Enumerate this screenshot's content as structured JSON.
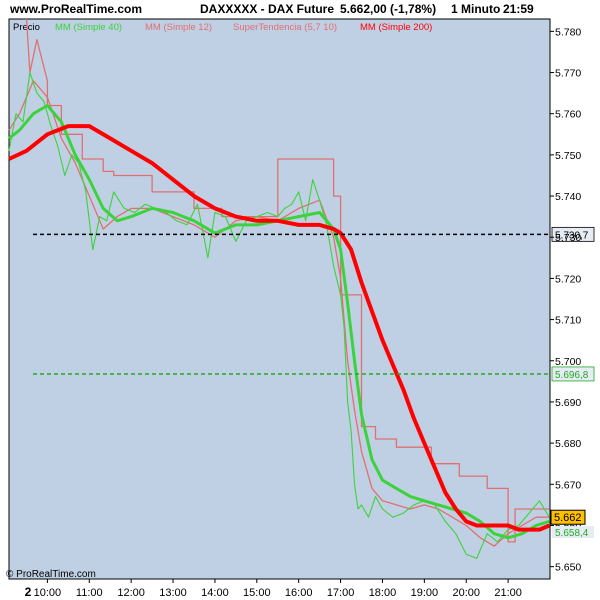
{
  "header": {
    "site": "www.ProRealTime.com",
    "instrument": "DAXXXXX - DAX Future",
    "price_change": "5.662,00 (-1,78%)",
    "timeframe": "1 Minuto",
    "time": "21:59"
  },
  "watermark": "© ProRealTime.com",
  "colors": {
    "plot_bg": "#c0d0e4",
    "price": "#3cd23c",
    "sma40": "#3cd23c",
    "sma12": "#e07070",
    "supertrend": "#e07070",
    "sma200": "#ff0000",
    "hline_black": "#000000",
    "hline_green": "#22aa22"
  },
  "chart_data": {
    "type": "line",
    "legend": [
      "Precio",
      "MM (Simple 40)",
      "MM (Simple 12)",
      "SuperTendencia (5,7 10)",
      "MM (Simple 200)"
    ],
    "day_label": "2",
    "x_ticks": [
      "10:00",
      "11:00",
      "12:00",
      "13:00",
      "14:00",
      "15:00",
      "16:00",
      "17:00",
      "18:00",
      "19:00",
      "20:00",
      "21:00"
    ],
    "x_range": [
      "09:05",
      "22:00"
    ],
    "y_ticks": [
      "5.780",
      "5.770",
      "5.760",
      "5.750",
      "5.740",
      "5.730",
      "5.720",
      "5.710",
      "5.700",
      "5.690",
      "5.680",
      "5.670",
      "5.660",
      "5.650"
    ],
    "ylim": [
      5647,
      5783
    ],
    "reference_lines": [
      {
        "value": 5730.7,
        "label": "5.730,7",
        "style": "dashed",
        "color": "black"
      },
      {
        "value": 5696.8,
        "label": "5.696,8",
        "style": "dashed",
        "color": "green"
      }
    ],
    "last_price": {
      "value": 5662,
      "label": "5.662"
    },
    "side_labels": [
      {
        "value": 5658.4,
        "label": "5.658,4"
      }
    ],
    "series": [
      {
        "name": "Precio",
        "x": [
          "09:05",
          "09:15",
          "09:25",
          "09:35",
          "09:45",
          "09:55",
          "10:05",
          "10:15",
          "10:25",
          "10:35",
          "10:45",
          "10:55",
          "11:05",
          "11:15",
          "11:25",
          "11:35",
          "11:50",
          "12:05",
          "12:20",
          "12:35",
          "12:50",
          "13:05",
          "13:20",
          "13:35",
          "13:50",
          "14:00",
          "14:15",
          "14:30",
          "14:45",
          "15:00",
          "15:15",
          "15:30",
          "15:40",
          "15:50",
          "16:00",
          "16:10",
          "16:20",
          "16:30",
          "16:40",
          "16:50",
          "17:00",
          "17:05",
          "17:10",
          "17:15",
          "17:20",
          "17:25",
          "17:30",
          "17:40",
          "17:50",
          "18:00",
          "18:15",
          "18:30",
          "18:45",
          "19:00",
          "19:15",
          "19:30",
          "19:45",
          "20:00",
          "20:15",
          "20:30",
          "20:45",
          "21:00",
          "21:15",
          "21:30",
          "21:45",
          "21:59"
        ],
        "values": [
          5751,
          5760,
          5758,
          5770,
          5765,
          5763,
          5757,
          5752,
          5745,
          5750,
          5748,
          5741,
          5727,
          5735,
          5734,
          5741,
          5737,
          5736,
          5738,
          5737,
          5736,
          5734,
          5733,
          5738,
          5725,
          5736,
          5735,
          5729,
          5734,
          5735,
          5736,
          5735,
          5737,
          5738,
          5741,
          5734,
          5744,
          5739,
          5733,
          5723,
          5716,
          5708,
          5690,
          5683,
          5670,
          5664,
          5665,
          5662,
          5667,
          5664,
          5662,
          5663,
          5665,
          5666,
          5665,
          5661,
          5658,
          5653,
          5652,
          5658,
          5656,
          5659,
          5660,
          5663,
          5666,
          5662
        ]
      },
      {
        "name": "MM (Simple 40)",
        "x": [
          "09:05",
          "09:20",
          "09:40",
          "10:00",
          "10:20",
          "10:40",
          "11:00",
          "11:20",
          "11:40",
          "12:00",
          "12:30",
          "13:00",
          "13:30",
          "14:00",
          "14:30",
          "15:00",
          "15:30",
          "16:00",
          "16:30",
          "16:50",
          "17:00",
          "17:10",
          "17:20",
          "17:30",
          "17:45",
          "18:00",
          "18:20",
          "18:40",
          "19:00",
          "19:20",
          "19:40",
          "20:00",
          "20:20",
          "20:40",
          "21:00",
          "21:20",
          "21:40",
          "21:59"
        ],
        "values": [
          5754,
          5756,
          5760,
          5762,
          5758,
          5750,
          5744,
          5737,
          5734,
          5735,
          5737,
          5736,
          5734,
          5731,
          5733,
          5733,
          5734,
          5735,
          5736,
          5732,
          5727,
          5714,
          5700,
          5687,
          5676,
          5671,
          5669,
          5667,
          5666,
          5665,
          5664,
          5663,
          5661,
          5658,
          5657,
          5658,
          5660,
          5661
        ]
      },
      {
        "name": "MM (Simple 12)",
        "x": [
          "09:05",
          "09:20",
          "09:40",
          "10:00",
          "10:20",
          "10:40",
          "11:00",
          "11:20",
          "11:40",
          "12:00",
          "12:30",
          "13:00",
          "13:30",
          "14:00",
          "14:30",
          "15:00",
          "15:30",
          "16:00",
          "16:30",
          "16:50",
          "17:00",
          "17:10",
          "17:20",
          "17:30",
          "17:45",
          "18:00",
          "18:20",
          "18:40",
          "19:00",
          "19:20",
          "19:40",
          "20:00",
          "20:20",
          "20:40",
          "21:00",
          "21:20",
          "21:40",
          "21:59"
        ],
        "values": [
          5756,
          5760,
          5768,
          5764,
          5754,
          5748,
          5740,
          5732,
          5735,
          5737,
          5737,
          5735,
          5733,
          5730,
          5734,
          5735,
          5734,
          5737,
          5739,
          5730,
          5720,
          5700,
          5688,
          5678,
          5669,
          5666,
          5665,
          5664,
          5665,
          5664,
          5662,
          5660,
          5657,
          5655,
          5658,
          5660,
          5662,
          5662
        ]
      },
      {
        "name": "SuperTendencia (5,7 10)",
        "x": [
          "09:30",
          "09:35",
          "09:45",
          "10:00",
          "10:00",
          "10:20",
          "10:20",
          "10:50",
          "10:50",
          "11:20",
          "11:20",
          "11:35",
          "11:35",
          "12:30",
          "12:30",
          "13:30",
          "13:30",
          "14:10",
          "14:10",
          "15:30",
          "15:30",
          "16:30",
          "16:30",
          "16:50",
          "16:50",
          "17:00",
          "17:00",
          "17:30",
          "17:30",
          "17:50",
          "17:50",
          "18:20",
          "18:20",
          "19:10",
          "19:10",
          "19:50",
          "19:50",
          "20:30",
          "20:30",
          "21:00",
          "21:00",
          "21:10",
          "21:10",
          "21:59"
        ],
        "values": [
          5783,
          5770,
          5778,
          5768,
          5762,
          5762,
          5755,
          5755,
          5749,
          5749,
          5746,
          5746,
          5745,
          5745,
          5741,
          5741,
          5737,
          5737,
          5735,
          5735,
          5749,
          5749,
          5749,
          5749,
          5740,
          5740,
          5716,
          5716,
          5684,
          5684,
          5681,
          5681,
          5679,
          5679,
          5675,
          5675,
          5672,
          5672,
          5669,
          5669,
          5656,
          5656,
          5664,
          5664
        ]
      },
      {
        "name": "MM (Simple 200)",
        "x": [
          "09:05",
          "09:30",
          "10:00",
          "10:30",
          "11:00",
          "11:30",
          "12:00",
          "12:30",
          "13:00",
          "13:30",
          "14:00",
          "14:30",
          "15:00",
          "15:30",
          "16:00",
          "16:30",
          "16:50",
          "17:00",
          "17:15",
          "17:30",
          "17:45",
          "18:00",
          "18:15",
          "18:30",
          "18:45",
          "19:00",
          "19:15",
          "19:30",
          "19:45",
          "20:00",
          "20:15",
          "20:30",
          "20:45",
          "21:00",
          "21:15",
          "21:30",
          "21:45",
          "21:59"
        ],
        "values": [
          5749,
          5751,
          5755,
          5757,
          5757,
          5754,
          5751,
          5748,
          5744,
          5740,
          5737,
          5735,
          5734,
          5734,
          5733,
          5733,
          5732,
          5731,
          5727,
          5719,
          5712,
          5705,
          5699,
          5693,
          5686,
          5680,
          5674,
          5668,
          5664,
          5661,
          5660,
          5660,
          5660,
          5660,
          5659,
          5659,
          5659,
          5660
        ]
      }
    ]
  }
}
